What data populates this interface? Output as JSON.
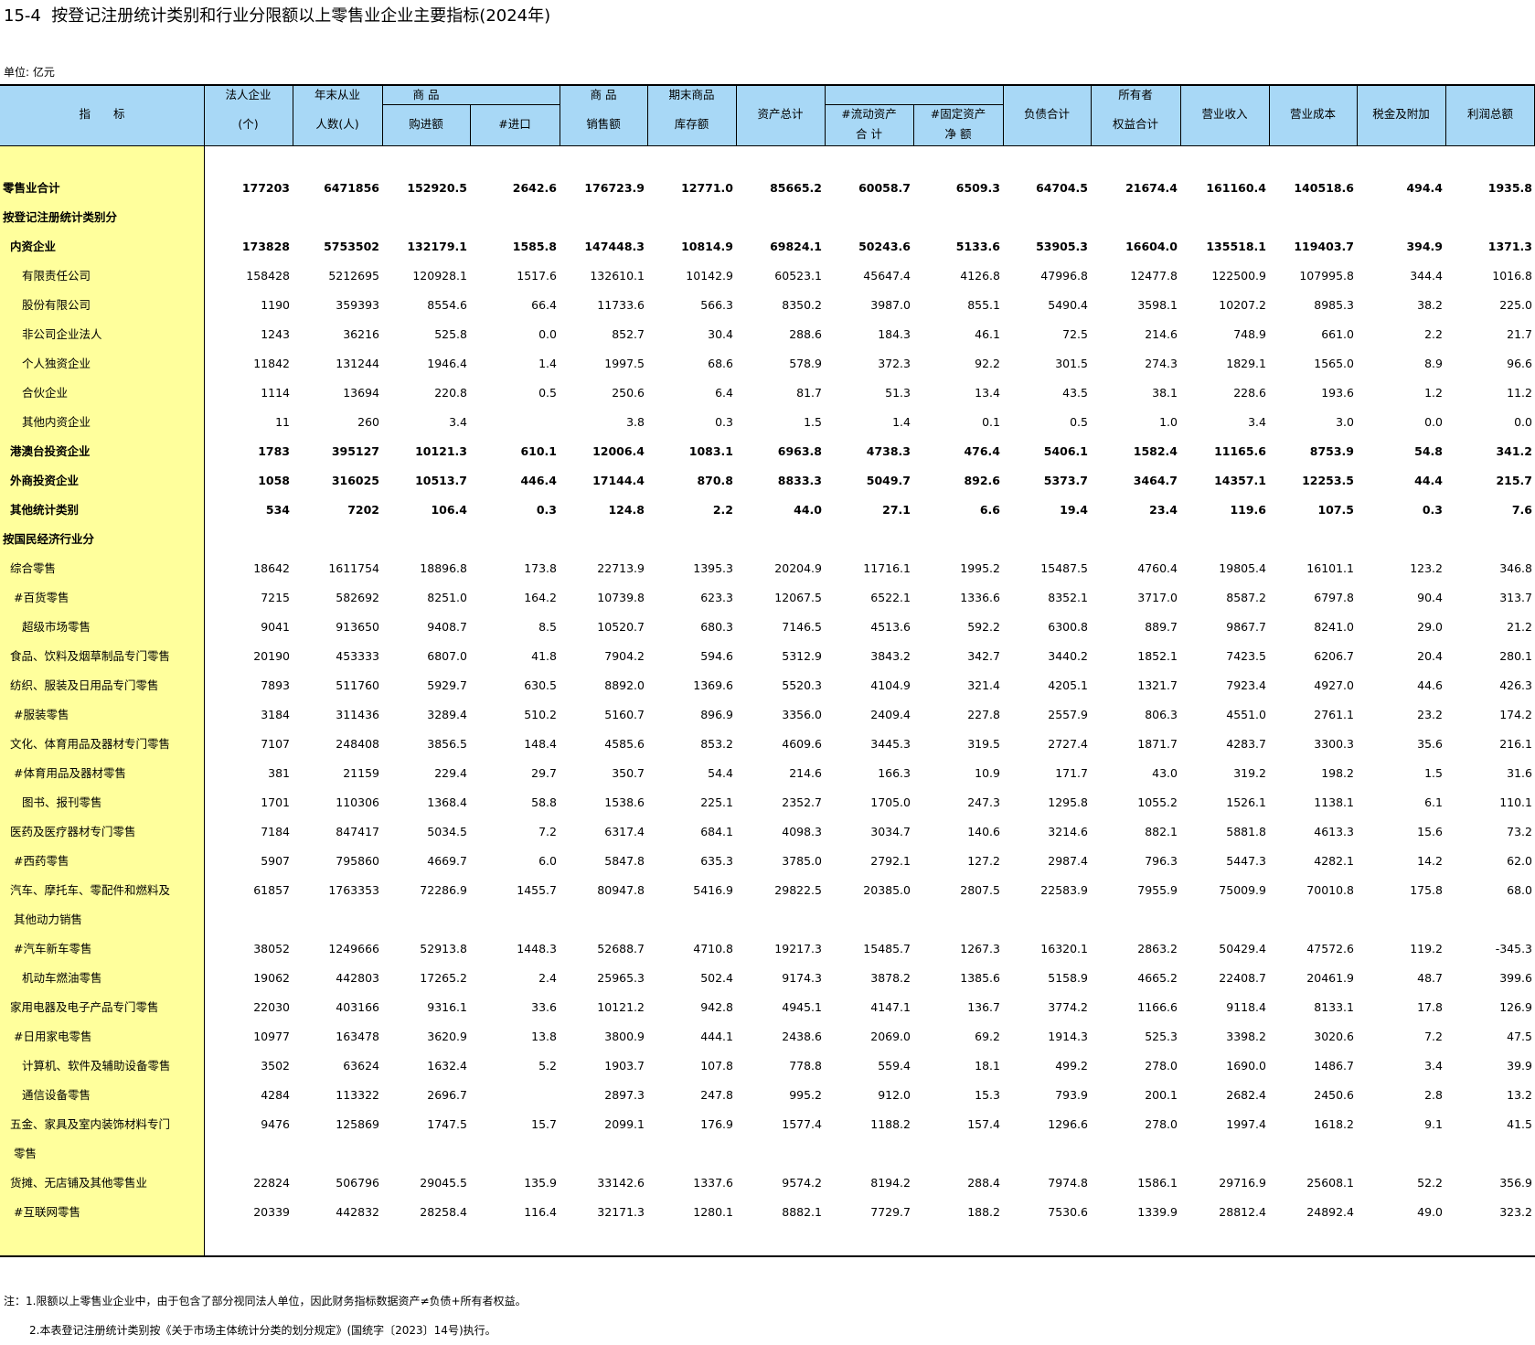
{
  "header": {
    "title": "15-4  按登记注册统计类别和行业分限额以上零售业企业主要指标(2024年)",
    "unit": "单位: 亿元"
  },
  "table": {
    "group_label": "商 品",
    "columns": [
      [
        "指　　标"
      ],
      [
        "法人企业",
        "(个)"
      ],
      [
        "年末从业",
        "人数(人)"
      ],
      [
        "购进额"
      ],
      [
        "#进口"
      ],
      [
        "商 品",
        "销售额"
      ],
      [
        "期末商品",
        "库存额"
      ],
      [
        "资产总计"
      ],
      [
        "#流动资产",
        "合 计"
      ],
      [
        "#固定资产",
        "净 额"
      ],
      [
        "负债合计"
      ],
      [
        "所有者",
        "权益合计"
      ],
      [
        "营业收入"
      ],
      [
        "营业成本"
      ],
      [
        "税金及附加"
      ],
      [
        "利润总额"
      ]
    ],
    "rows": [
      {
        "label": [
          "零售业合计"
        ],
        "level": 0,
        "bold": true,
        "values": [
          "177203",
          "6471856",
          "152920.5",
          "2642.6",
          "176723.9",
          "12771.0",
          "85665.2",
          "60058.7",
          "6509.3",
          "64704.5",
          "21674.4",
          "161160.4",
          "140518.6",
          "494.4",
          "1935.8"
        ]
      },
      {
        "label": [
          "按登记注册统计类别分"
        ],
        "level": 0,
        "bold": true,
        "values": null
      },
      {
        "label": [
          "内资企业"
        ],
        "level": 1,
        "bold": true,
        "values": [
          "173828",
          "5753502",
          "132179.1",
          "1585.8",
          "147448.3",
          "10814.9",
          "69824.1",
          "50243.6",
          "5133.6",
          "53905.3",
          "16604.0",
          "135518.1",
          "119403.7",
          "394.9",
          "1371.3"
        ]
      },
      {
        "label": [
          "有限责任公司"
        ],
        "level": 2,
        "bold": false,
        "values": [
          "158428",
          "5212695",
          "120928.1",
          "1517.6",
          "132610.1",
          "10142.9",
          "60523.1",
          "45647.4",
          "4126.8",
          "47996.8",
          "12477.8",
          "122500.9",
          "107995.8",
          "344.4",
          "1016.8"
        ]
      },
      {
        "label": [
          "股份有限公司"
        ],
        "level": 2,
        "bold": false,
        "values": [
          "1190",
          "359393",
          "8554.6",
          "66.4",
          "11733.6",
          "566.3",
          "8350.2",
          "3987.0",
          "855.1",
          "5490.4",
          "3598.1",
          "10207.2",
          "8985.3",
          "38.2",
          "225.0"
        ]
      },
      {
        "label": [
          "非公司企业法人"
        ],
        "level": 2,
        "bold": false,
        "values": [
          "1243",
          "36216",
          "525.8",
          "0.0",
          "852.7",
          "30.4",
          "288.6",
          "184.3",
          "46.1",
          "72.5",
          "214.6",
          "748.9",
          "661.0",
          "2.2",
          "21.7"
        ]
      },
      {
        "label": [
          "个人独资企业"
        ],
        "level": 2,
        "bold": false,
        "values": [
          "11842",
          "131244",
          "1946.4",
          "1.4",
          "1997.5",
          "68.6",
          "578.9",
          "372.3",
          "92.2",
          "301.5",
          "274.3",
          "1829.1",
          "1565.0",
          "8.9",
          "96.6"
        ]
      },
      {
        "label": [
          "合伙企业"
        ],
        "level": 2,
        "bold": false,
        "values": [
          "1114",
          "13694",
          "220.8",
          "0.5",
          "250.6",
          "6.4",
          "81.7",
          "51.3",
          "13.4",
          "43.5",
          "38.1",
          "228.6",
          "193.6",
          "1.2",
          "11.2"
        ]
      },
      {
        "label": [
          "其他内资企业"
        ],
        "level": 2,
        "bold": false,
        "values": [
          "11",
          "260",
          "3.4",
          null,
          "3.8",
          "0.3",
          "1.5",
          "1.4",
          "0.1",
          "0.5",
          "1.0",
          "3.4",
          "3.0",
          "0.0",
          "0.0"
        ]
      },
      {
        "label": [
          "港澳台投资企业"
        ],
        "level": 1,
        "bold": true,
        "values": [
          "1783",
          "395127",
          "10121.3",
          "610.1",
          "12006.4",
          "1083.1",
          "6963.8",
          "4738.3",
          "476.4",
          "5406.1",
          "1582.4",
          "11165.6",
          "8753.9",
          "54.8",
          "341.2"
        ]
      },
      {
        "label": [
          "外商投资企业"
        ],
        "level": 1,
        "bold": true,
        "values": [
          "1058",
          "316025",
          "10513.7",
          "446.4",
          "17144.4",
          "870.8",
          "8833.3",
          "5049.7",
          "892.6",
          "5373.7",
          "3464.7",
          "14357.1",
          "12253.5",
          "44.4",
          "215.7"
        ]
      },
      {
        "label": [
          "其他统计类别"
        ],
        "level": 1,
        "bold": true,
        "values": [
          "534",
          "7202",
          "106.4",
          "0.3",
          "124.8",
          "2.2",
          "44.0",
          "27.1",
          "6.6",
          "19.4",
          "23.4",
          "119.6",
          "107.5",
          "0.3",
          "7.6"
        ]
      },
      {
        "label": [
          "按国民经济行业分"
        ],
        "level": 0,
        "bold": true,
        "values": null
      },
      {
        "label": [
          "综合零售"
        ],
        "level": 1,
        "bold": false,
        "values": [
          "18642",
          "1611754",
          "18896.8",
          "173.8",
          "22713.9",
          "1395.3",
          "20204.9",
          "11716.1",
          "1995.2",
          "15487.5",
          "4760.4",
          "19805.4",
          "16101.1",
          "123.2",
          "346.8"
        ]
      },
      {
        "label": [
          "#百货零售"
        ],
        "level": 2,
        "bold": false,
        "values": [
          "7215",
          "582692",
          "8251.0",
          "164.2",
          "10739.8",
          "623.3",
          "12067.5",
          "6522.1",
          "1336.6",
          "8352.1",
          "3717.0",
          "8587.2",
          "6797.8",
          "90.4",
          "313.7"
        ]
      },
      {
        "label": [
          "超级市场零售"
        ],
        "level": 2,
        "bold": false,
        "values": [
          "9041",
          "913650",
          "9408.7",
          "8.5",
          "10520.7",
          "680.3",
          "7146.5",
          "4513.6",
          "592.2",
          "6300.8",
          "889.7",
          "9867.7",
          "8241.0",
          "29.0",
          "21.2"
        ]
      },
      {
        "label": [
          "食品、饮料及烟草制品专门零售"
        ],
        "level": 1,
        "bold": false,
        "values": [
          "20190",
          "453333",
          "6807.0",
          "41.8",
          "7904.2",
          "594.6",
          "5312.9",
          "3843.2",
          "342.7",
          "3440.2",
          "1852.1",
          "7423.5",
          "6206.7",
          "20.4",
          "280.1"
        ]
      },
      {
        "label": [
          "纺织、服装及日用品专门零售"
        ],
        "level": 1,
        "bold": false,
        "values": [
          "7893",
          "511760",
          "5929.7",
          "630.5",
          "8892.0",
          "1369.6",
          "5520.3",
          "4104.9",
          "321.4",
          "4205.1",
          "1321.7",
          "7923.4",
          "4927.0",
          "44.6",
          "426.3"
        ]
      },
      {
        "label": [
          "#服装零售"
        ],
        "level": 2,
        "bold": false,
        "values": [
          "3184",
          "311436",
          "3289.4",
          "510.2",
          "5160.7",
          "896.9",
          "3356.0",
          "2409.4",
          "227.8",
          "2557.9",
          "806.3",
          "4551.0",
          "2761.1",
          "23.2",
          "174.2"
        ]
      },
      {
        "label": [
          "文化、体育用品及器材专门零售"
        ],
        "level": 1,
        "bold": false,
        "values": [
          "7107",
          "248408",
          "3856.5",
          "148.4",
          "4585.6",
          "853.2",
          "4609.6",
          "3445.3",
          "319.5",
          "2727.4",
          "1871.7",
          "4283.7",
          "3300.3",
          "35.6",
          "216.1"
        ]
      },
      {
        "label": [
          "#体育用品及器材零售"
        ],
        "level": 2,
        "bold": false,
        "values": [
          "381",
          "21159",
          "229.4",
          "29.7",
          "350.7",
          "54.4",
          "214.6",
          "166.3",
          "10.9",
          "171.7",
          "43.0",
          "319.2",
          "198.2",
          "1.5",
          "31.6"
        ]
      },
      {
        "label": [
          "图书、报刊零售"
        ],
        "level": 2,
        "bold": false,
        "values": [
          "1701",
          "110306",
          "1368.4",
          "58.8",
          "1538.6",
          "225.1",
          "2352.7",
          "1705.0",
          "247.3",
          "1295.8",
          "1055.2",
          "1526.1",
          "1138.1",
          "6.1",
          "110.1"
        ]
      },
      {
        "label": [
          "医药及医疗器材专门零售"
        ],
        "level": 1,
        "bold": false,
        "values": [
          "7184",
          "847417",
          "5034.5",
          "7.2",
          "6317.4",
          "684.1",
          "4098.3",
          "3034.7",
          "140.6",
          "3214.6",
          "882.1",
          "5881.8",
          "4613.3",
          "15.6",
          "73.2"
        ]
      },
      {
        "label": [
          "#西药零售"
        ],
        "level": 2,
        "bold": false,
        "values": [
          "5907",
          "795860",
          "4669.7",
          "6.0",
          "5847.8",
          "635.3",
          "3785.0",
          "2792.1",
          "127.2",
          "2987.4",
          "796.3",
          "5447.3",
          "4282.1",
          "14.2",
          "62.0"
        ]
      },
      {
        "label": [
          "汽车、摩托车、零配件和燃料及",
          "其他动力销售"
        ],
        "level": 1,
        "bold": false,
        "values": [
          "61857",
          "1763353",
          "72286.9",
          "1455.7",
          "80947.8",
          "5416.9",
          "29822.5",
          "20385.0",
          "2807.5",
          "22583.9",
          "7955.9",
          "75009.9",
          "70010.8",
          "175.8",
          "68.0"
        ]
      },
      {
        "label": [
          "#汽车新车零售"
        ],
        "level": 2,
        "bold": false,
        "values": [
          "38052",
          "1249666",
          "52913.8",
          "1448.3",
          "52688.7",
          "4710.8",
          "19217.3",
          "15485.7",
          "1267.3",
          "16320.1",
          "2863.2",
          "50429.4",
          "47572.6",
          "119.2",
          "-345.3"
        ]
      },
      {
        "label": [
          "机动车燃油零售"
        ],
        "level": 2,
        "bold": false,
        "values": [
          "19062",
          "442803",
          "17265.2",
          "2.4",
          "25965.3",
          "502.4",
          "9174.3",
          "3878.2",
          "1385.6",
          "5158.9",
          "4665.2",
          "22408.7",
          "20461.9",
          "48.7",
          "399.6"
        ]
      },
      {
        "label": [
          "家用电器及电子产品专门零售"
        ],
        "level": 1,
        "bold": false,
        "values": [
          "22030",
          "403166",
          "9316.1",
          "33.6",
          "10121.2",
          "942.8",
          "4945.1",
          "4147.1",
          "136.7",
          "3774.2",
          "1166.6",
          "9118.4",
          "8133.1",
          "17.8",
          "126.9"
        ]
      },
      {
        "label": [
          "#日用家电零售"
        ],
        "level": 2,
        "bold": false,
        "values": [
          "10977",
          "163478",
          "3620.9",
          "13.8",
          "3800.9",
          "444.1",
          "2438.6",
          "2069.0",
          "69.2",
          "1914.3",
          "525.3",
          "3398.2",
          "3020.6",
          "7.2",
          "47.5"
        ]
      },
      {
        "label": [
          "计算机、软件及辅助设备零售"
        ],
        "level": 2,
        "bold": false,
        "values": [
          "3502",
          "63624",
          "1632.4",
          "5.2",
          "1903.7",
          "107.8",
          "778.8",
          "559.4",
          "18.1",
          "499.2",
          "278.0",
          "1690.0",
          "1486.7",
          "3.4",
          "39.9"
        ]
      },
      {
        "label": [
          "通信设备零售"
        ],
        "level": 2,
        "bold": false,
        "values": [
          "4284",
          "113322",
          "2696.7",
          null,
          "2897.3",
          "247.8",
          "995.2",
          "912.0",
          "15.3",
          "793.9",
          "200.1",
          "2682.4",
          "2450.6",
          "2.8",
          "13.2"
        ]
      },
      {
        "label": [
          "五金、家具及室内装饰材料专门",
          "零售"
        ],
        "level": 1,
        "bold": false,
        "values": [
          "9476",
          "125869",
          "1747.5",
          "15.7",
          "2099.1",
          "176.9",
          "1577.4",
          "1188.2",
          "157.4",
          "1296.6",
          "278.0",
          "1997.4",
          "1618.2",
          "9.1",
          "41.5"
        ]
      },
      {
        "label": [
          "货摊、无店铺及其他零售业"
        ],
        "level": 1,
        "bold": false,
        "values": [
          "22824",
          "506796",
          "29045.5",
          "135.9",
          "33142.6",
          "1337.6",
          "9574.2",
          "8194.2",
          "288.4",
          "7974.8",
          "1586.1",
          "29716.9",
          "25608.1",
          "52.2",
          "356.9"
        ]
      },
      {
        "label": [
          "#互联网零售"
        ],
        "level": 2,
        "bold": false,
        "values": [
          "20339",
          "442832",
          "28258.4",
          "116.4",
          "32171.3",
          "1280.1",
          "8882.1",
          "7729.7",
          "188.2",
          "7530.6",
          "1339.9",
          "28812.4",
          "24892.4",
          "49.0",
          "323.2"
        ]
      }
    ]
  },
  "notes": [
    "注：1.限额以上零售业企业中，由于包含了部分视同法人单位，因此财务指标数据资产≠负债+所有者权益。",
    "2.本表登记注册统计类别按《关于市场主体统计分类的划分规定》(国统字〔2023〕14号)执行。"
  ]
}
